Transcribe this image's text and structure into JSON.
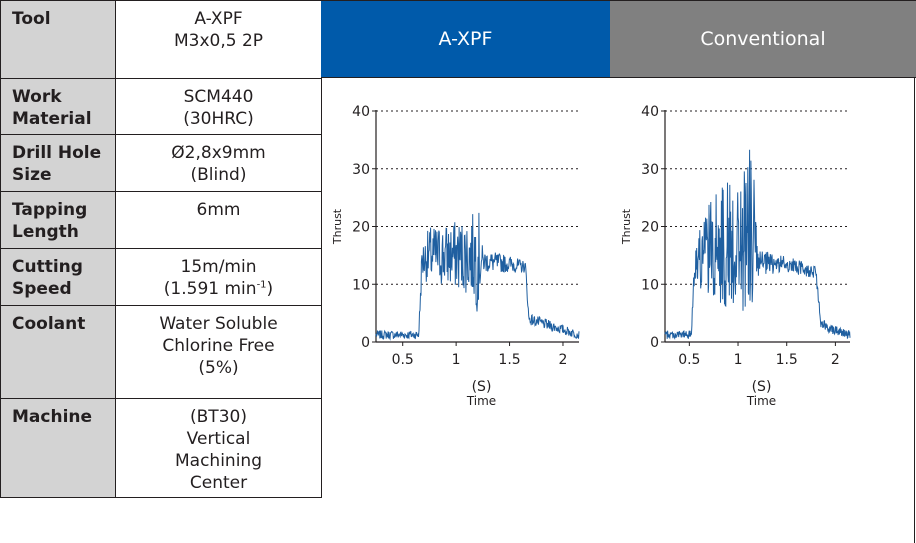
{
  "table": {
    "rows": [
      {
        "label": [
          "Tool"
        ],
        "value": [
          "A-XPF",
          "M3x0,5 2P"
        ]
      },
      {
        "label": [
          "Work",
          "Material"
        ],
        "value": [
          "SCM440",
          "(30HRC)"
        ]
      },
      {
        "label": [
          "Drill Hole",
          "Size"
        ],
        "value": [
          "Ø2,8x9mm",
          "(Blind)"
        ]
      },
      {
        "label": [
          "Tapping",
          "Length"
        ],
        "value": [
          "6mm"
        ]
      },
      {
        "label": [
          "Cutting",
          "Speed"
        ],
        "value": [
          "15m/min",
          "(1.591 min",
          "-1",
          ")"
        ]
      },
      {
        "label": [
          "Coolant"
        ],
        "value": [
          "Water Soluble",
          "Chlorine Free",
          "(5%)"
        ]
      },
      {
        "label": [
          "Machine"
        ],
        "value": [
          "(BT30)",
          "Vertical",
          "Machining",
          "Center"
        ]
      }
    ]
  },
  "headers": {
    "axpf": "A-XPF",
    "conventional": "Conventional"
  },
  "colors": {
    "axpf_header": "#005aaa",
    "conventional_header": "#808080",
    "label_cell": "#d3d3d3",
    "signal": "#1f5fa0",
    "grid": "#231f20"
  },
  "chart_data": [
    {
      "type": "line",
      "title": "A-XPF",
      "ylabel": "Thrust",
      "xlabel": "Time",
      "xunit": "(S)",
      "xlim": [
        0.25,
        2.15
      ],
      "ylim": [
        0,
        40
      ],
      "xticks": [
        0.5,
        1,
        1.5,
        2
      ],
      "xtick_labels": [
        "0.5",
        "1",
        "1.5",
        "2"
      ],
      "yticks": [
        0,
        10,
        20,
        30,
        40
      ],
      "grid": "dotted horizontal",
      "series": [
        {
          "values_description_free": true,
          "envelope": [
            {
              "x": 0.25,
              "low": 0.5,
              "high": 2
            },
            {
              "x": 0.65,
              "low": 0.5,
              "high": 2
            },
            {
              "x": 0.68,
              "low": 11,
              "high": 17
            },
            {
              "x": 0.75,
              "low": 10,
              "high": 20
            },
            {
              "x": 1.0,
              "low": 9,
              "high": 21
            },
            {
              "x": 1.15,
              "low": 8,
              "high": 22
            },
            {
              "x": 1.2,
              "low": 5,
              "high": 25
            },
            {
              "x": 1.25,
              "low": 12,
              "high": 16
            },
            {
              "x": 1.5,
              "low": 12,
              "high": 15
            },
            {
              "x": 1.65,
              "low": 12,
              "high": 14
            },
            {
              "x": 1.68,
              "low": 3,
              "high": 5
            },
            {
              "x": 2.15,
              "low": 0.5,
              "high": 2
            }
          ]
        }
      ]
    },
    {
      "type": "line",
      "title": "Conventional",
      "ylabel": "Thrust",
      "xlabel": "Time",
      "xunit": "(S)",
      "xlim": [
        0.25,
        2.15
      ],
      "ylim": [
        0,
        40
      ],
      "xticks": [
        0.5,
        1,
        1.5,
        2
      ],
      "xtick_labels": [
        "0.5",
        "1",
        "1.5",
        "2"
      ],
      "yticks": [
        0,
        10,
        20,
        30,
        40
      ],
      "grid": "dotted horizontal",
      "series": [
        {
          "envelope": [
            {
              "x": 0.25,
              "low": 0.5,
              "high": 2
            },
            {
              "x": 0.52,
              "low": 0.5,
              "high": 2
            },
            {
              "x": 0.55,
              "low": 10,
              "high": 17
            },
            {
              "x": 0.7,
              "low": 8,
              "high": 24
            },
            {
              "x": 0.9,
              "low": 5,
              "high": 29
            },
            {
              "x": 1.05,
              "low": 4,
              "high": 30
            },
            {
              "x": 1.15,
              "low": 6,
              "high": 35
            },
            {
              "x": 1.2,
              "low": 11,
              "high": 16
            },
            {
              "x": 1.5,
              "low": 12,
              "high": 15
            },
            {
              "x": 1.8,
              "low": 11,
              "high": 13
            },
            {
              "x": 1.85,
              "low": 2,
              "high": 4
            },
            {
              "x": 2.15,
              "low": 0.5,
              "high": 2
            }
          ]
        }
      ]
    }
  ]
}
